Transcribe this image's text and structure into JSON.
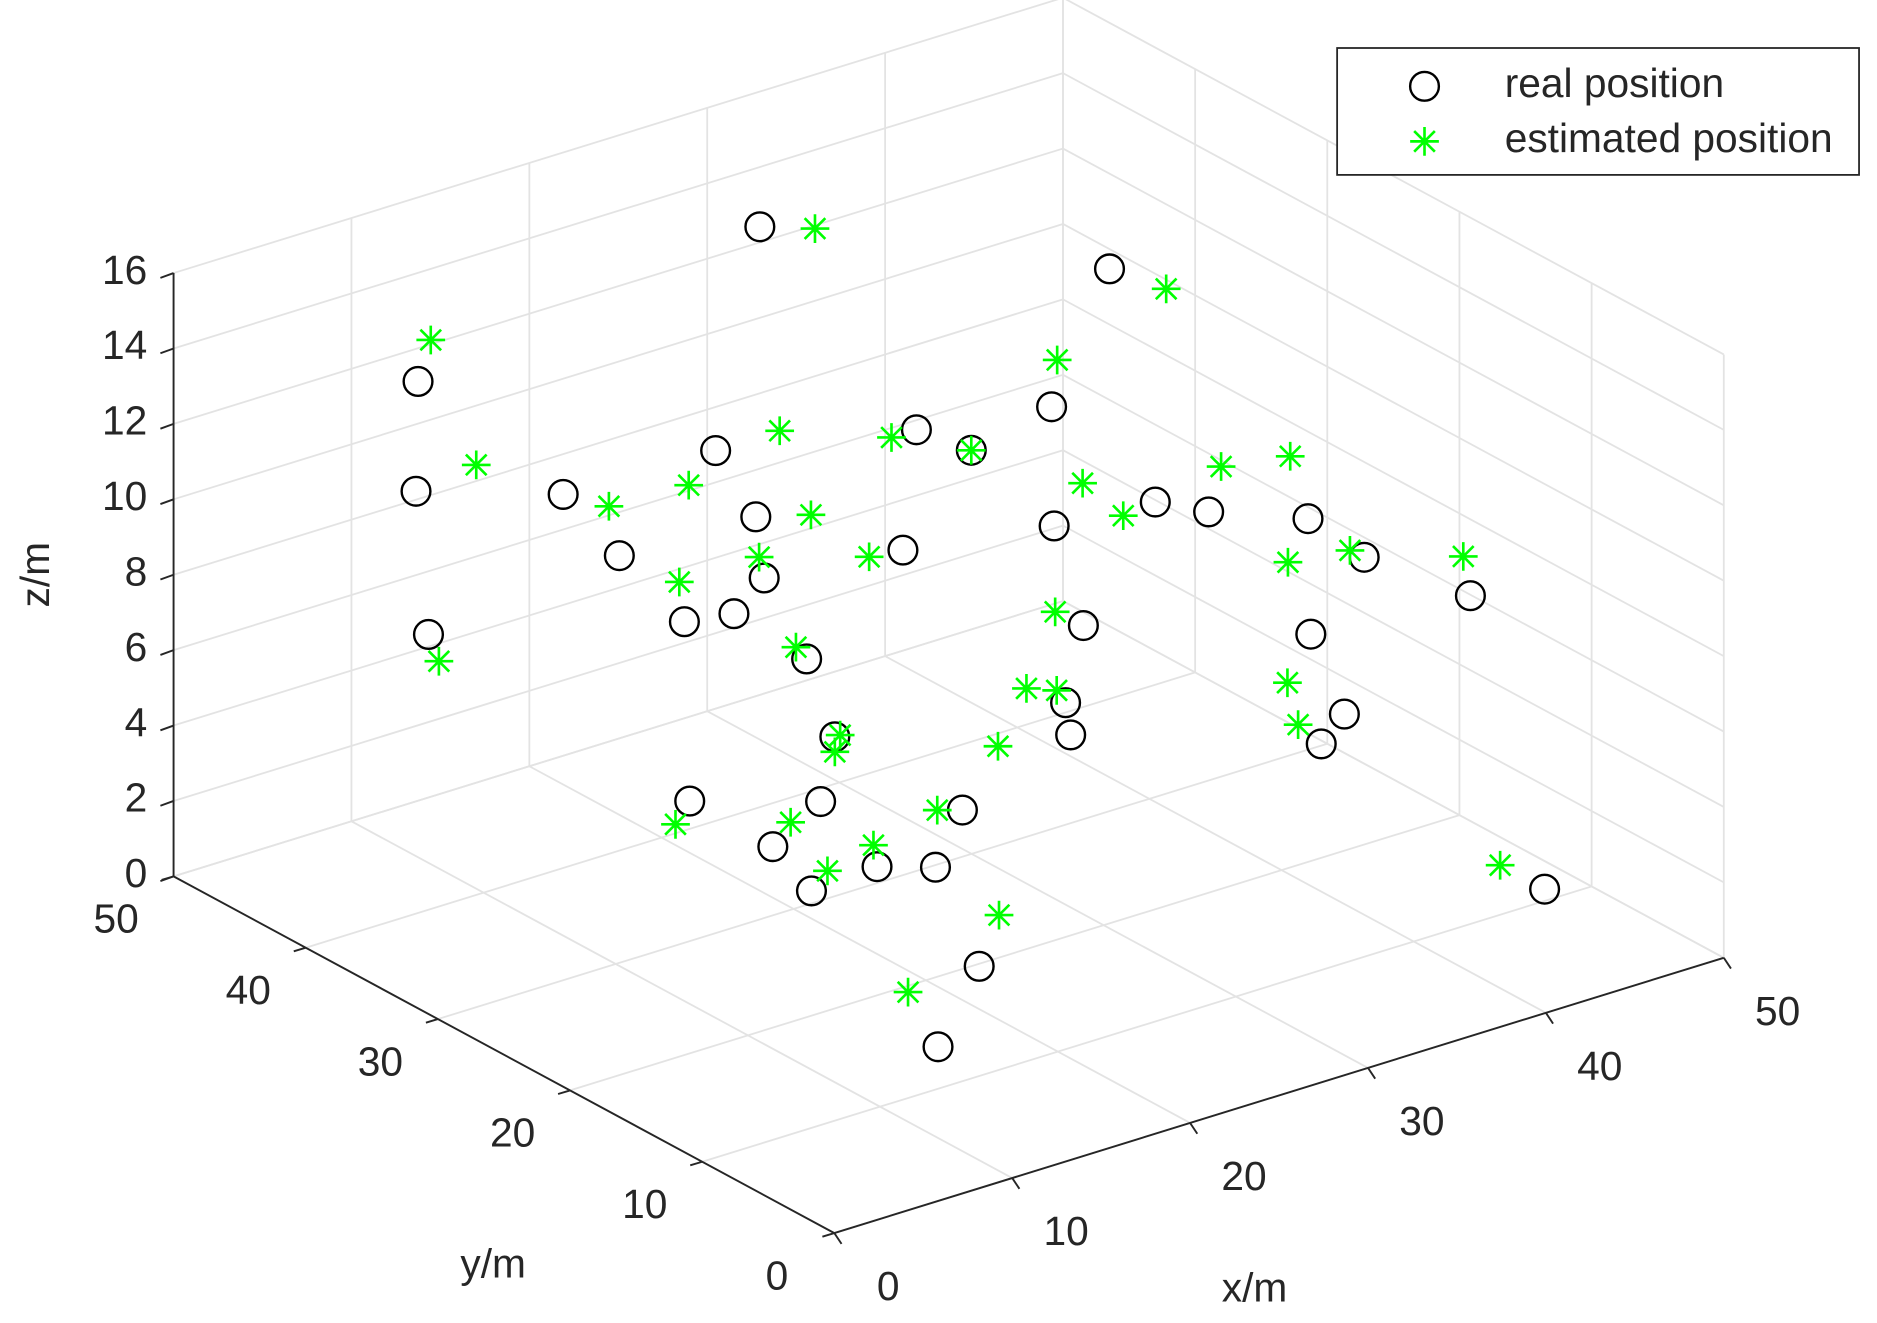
{
  "chart_data": {
    "type": "scatter3d",
    "xlabel": "x/m",
    "ylabel": "y/m",
    "zlabel": "z/m",
    "xlim": [
      0,
      50
    ],
    "ylim": [
      0,
      50
    ],
    "zlim": [
      0,
      16
    ],
    "xticks": [
      0,
      10,
      20,
      30,
      40,
      50
    ],
    "yticks": [
      0,
      10,
      20,
      30,
      40,
      50
    ],
    "zticks": [
      0,
      2,
      4,
      6,
      8,
      10,
      12,
      14,
      16
    ],
    "grid": true,
    "legend": "northeast",
    "series": [
      {
        "name": "real position",
        "marker": "circle",
        "color": "#000000",
        "x": [
          28.5,
          43.7,
          7.8,
          34.5,
          26.9,
          28.5,
          17.1,
          6.2,
          11.5,
          14.9,
          32.9,
          35.9,
          40.0,
          28.7,
          10.2,
          20.2,
          38.7,
          12.4,
          10.7,
          9.4,
          6.9,
          24.4,
          41.7,
          35.7,
          13.3,
          23.4,
          36.1,
          22.2,
          34.8,
          13.4,
          9.7,
          12.6,
          17.6,
          11.4,
          12.8,
          14.6,
          10.6,
          42.9,
          12.6,
          8.8
        ],
        "y": [
          44,
          38,
          42,
          30,
          30,
          28,
          32,
          40,
          36,
          26,
          20,
          20,
          18,
          22,
          30,
          22,
          12,
          22,
          22,
          24,
          40,
          14,
          8,
          12,
          20,
          14,
          10,
          12,
          10,
          18,
          24,
          18,
          14,
          20,
          14,
          12,
          16,
          4,
          6,
          4
        ],
        "z": [
          14.2,
          12,
          13.5,
          11.2,
          11.7,
          11.3,
          12.2,
          11.2,
          11.1,
          11.9,
          10.8,
          10.1,
          9.7,
          10.4,
          10.8,
          11.0,
          10.0,
          11.4,
          10.7,
          10.3,
          7.3,
          9.9,
          9.3,
          8.4,
          9.5,
          8.0,
          6.6,
          7.7,
          6.0,
          7.8,
          5.5,
          6.2,
          6.0,
          4.8,
          5.2,
          5.3,
          4.5,
          2.1,
          4.1,
          2.9
        ]
      },
      {
        "name": "estimated position",
        "marker": "asterisk",
        "color": "#00ff00",
        "x": [
          31.6,
          45.4,
          10.0,
          36.3,
          20.7,
          25.5,
          28.5,
          8.1,
          39.0,
          36.6,
          30.3,
          14.1,
          11.1,
          18.0,
          31.1,
          37.9,
          41.3,
          13.6,
          18.3,
          35.9,
          10.6,
          24.3,
          12.7,
          6.0,
          32.9,
          21.2,
          22.9,
          33.5,
          13.7,
          19.6,
          13.4,
          14.7,
          12.4,
          8.9,
          12.6,
          11.5,
          40.4,
          15.2,
          8.6
        ],
        "y": [
          44,
          36,
          44,
          32,
          32,
          30,
          28,
          38,
          18,
          20,
          22,
          30,
          32,
          26,
          20,
          12,
          8,
          24,
          22,
          14,
          26,
          16,
          20,
          38,
          10,
          14,
          14,
          10,
          18,
          14,
          18,
          12,
          20,
          24,
          14,
          16,
          4,
          8,
          6
        ],
        "z": [
          13.7,
          11.6,
          13.9,
          11.8,
          12.2,
          11.7,
          11.3,
          12.0,
          11.5,
          11.2,
          11.3,
          12.1,
          11.6,
          11.5,
          10.7,
          10.3,
          10.4,
          11.4,
          11.1,
          9.9,
          10.8,
          9.9,
          9.9,
          7.1,
          7.9,
          8.7,
          8.4,
          6.7,
          7.8,
          7.4,
          7.4,
          6.8,
          5.3,
          5.0,
          5.8,
          4.9,
          3.1,
          4.7,
          4.0
        ]
      }
    ]
  }
}
